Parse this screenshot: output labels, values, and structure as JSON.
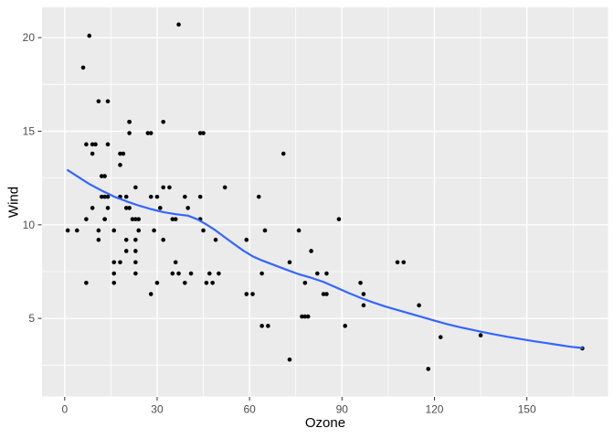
{
  "chart_data": {
    "type": "scatter",
    "title": "",
    "xlabel": "Ozone",
    "ylabel": "Wind",
    "xlim": [
      -7.35,
      176.35
    ],
    "ylim": [
      0.83,
      21.62
    ],
    "x_ticks": [
      0,
      30,
      60,
      90,
      120,
      150
    ],
    "y_ticks": [
      5,
      10,
      15,
      20
    ],
    "x_minor_ticks": [
      15,
      45,
      75,
      105,
      135,
      165
    ],
    "y_minor_ticks": [
      2.5,
      7.5,
      12.5,
      17.5
    ],
    "grid": true,
    "legend": false,
    "colors": {
      "panel_bg": "#EBEBEB",
      "grid": "#FFFFFF",
      "point": "#000000",
      "smooth_line": "#3366FF",
      "tick_mark": "#333333",
      "tick_label": "#4D4D4D",
      "axis_title": "#000000"
    },
    "points": [
      [
        41,
        7.4
      ],
      [
        36,
        8
      ],
      [
        12,
        12.6
      ],
      [
        18,
        11.5
      ],
      [
        28,
        14.9
      ],
      [
        23,
        8.6
      ],
      [
        19,
        13.8
      ],
      [
        8,
        20.1
      ],
      [
        7,
        6.9
      ],
      [
        16,
        9.7
      ],
      [
        11,
        9.2
      ],
      [
        14,
        10.9
      ],
      [
        18,
        13.2
      ],
      [
        14,
        11.5
      ],
      [
        34,
        12
      ],
      [
        6,
        18.4
      ],
      [
        30,
        11.5
      ],
      [
        11,
        9.7
      ],
      [
        1,
        9.7
      ],
      [
        11,
        16.6
      ],
      [
        4,
        9.7
      ],
      [
        32,
        12
      ],
      [
        23,
        12
      ],
      [
        45,
        14.9
      ],
      [
        115,
        5.7
      ],
      [
        37,
        7.4
      ],
      [
        29,
        9.7
      ],
      [
        71,
        13.8
      ],
      [
        39,
        11.5
      ],
      [
        23,
        8
      ],
      [
        21,
        14.9
      ],
      [
        37,
        20.7
      ],
      [
        20,
        9.2
      ],
      [
        12,
        11.5
      ],
      [
        13,
        10.3
      ],
      [
        135,
        4.1
      ],
      [
        49,
        9.2
      ],
      [
        32,
        9.2
      ],
      [
        64,
        4.6
      ],
      [
        40,
        10.9
      ],
      [
        77,
        5.1
      ],
      [
        97,
        6.3
      ],
      [
        97,
        5.7
      ],
      [
        85,
        7.4
      ],
      [
        10,
        14.3
      ],
      [
        27,
        14.9
      ],
      [
        7,
        14.3
      ],
      [
        48,
        6.9
      ],
      [
        35,
        10.3
      ],
      [
        61,
        6.3
      ],
      [
        79,
        5.1
      ],
      [
        63,
        11.5
      ],
      [
        16,
        6.9
      ],
      [
        80,
        8.6
      ],
      [
        108,
        8
      ],
      [
        20,
        8.6
      ],
      [
        52,
        12
      ],
      [
        82,
        7.4
      ],
      [
        50,
        7.4
      ],
      [
        64,
        7.4
      ],
      [
        59,
        9.2
      ],
      [
        39,
        6.9
      ],
      [
        9,
        13.8
      ],
      [
        16,
        7.4
      ],
      [
        78,
        6.9
      ],
      [
        35,
        7.4
      ],
      [
        66,
        4.6
      ],
      [
        122,
        4
      ],
      [
        89,
        10.3
      ],
      [
        110,
        8
      ],
      [
        44,
        11.5
      ],
      [
        28,
        11.5
      ],
      [
        65,
        9.7
      ],
      [
        22,
        10.3
      ],
      [
        59,
        6.3
      ],
      [
        23,
        7.4
      ],
      [
        31,
        10.9
      ],
      [
        44,
        10.3
      ],
      [
        21,
        15.5
      ],
      [
        9,
        14.3
      ],
      [
        45,
        9.7
      ],
      [
        168,
        3.4
      ],
      [
        73,
        8
      ],
      [
        76,
        9.7
      ],
      [
        118,
        2.3
      ],
      [
        84,
        6.3
      ],
      [
        85,
        6.3
      ],
      [
        96,
        6.9
      ],
      [
        78,
        5.1
      ],
      [
        73,
        2.8
      ],
      [
        91,
        4.6
      ],
      [
        47,
        7.4
      ],
      [
        32,
        15.5
      ],
      [
        20,
        10.9
      ],
      [
        23,
        10.3
      ],
      [
        21,
        10.9
      ],
      [
        24,
        9.7
      ],
      [
        44,
        14.9
      ],
      [
        21,
        15.5
      ],
      [
        28,
        6.3
      ],
      [
        9,
        10.9
      ],
      [
        13,
        11.5
      ],
      [
        46,
        6.9
      ],
      [
        18,
        13.8
      ],
      [
        13,
        10.3
      ],
      [
        24,
        10.3
      ],
      [
        16,
        8
      ],
      [
        13,
        12.6
      ],
      [
        23,
        9.2
      ],
      [
        36,
        10.3
      ],
      [
        7,
        10.3
      ],
      [
        14,
        16.6
      ],
      [
        30,
        6.9
      ],
      [
        14,
        14.3
      ],
      [
        18,
        8
      ],
      [
        20,
        11.5
      ]
    ],
    "smooth_line": [
      [
        1,
        12.92
      ],
      [
        4,
        12.6
      ],
      [
        8,
        12.18
      ],
      [
        12,
        11.83
      ],
      [
        16,
        11.51
      ],
      [
        20,
        11.26
      ],
      [
        24,
        11.03
      ],
      [
        28,
        10.84
      ],
      [
        32,
        10.68
      ],
      [
        36,
        10.57
      ],
      [
        40,
        10.49
      ],
      [
        43,
        10.3
      ],
      [
        46,
        10.02
      ],
      [
        49,
        9.7
      ],
      [
        52,
        9.33
      ],
      [
        55,
        8.97
      ],
      [
        58,
        8.62
      ],
      [
        61,
        8.32
      ],
      [
        64,
        8.1
      ],
      [
        68,
        7.85
      ],
      [
        72,
        7.6
      ],
      [
        76,
        7.36
      ],
      [
        80,
        7.17
      ],
      [
        84,
        6.95
      ],
      [
        88,
        6.66
      ],
      [
        92,
        6.37
      ],
      [
        96,
        6.1
      ],
      [
        100,
        5.86
      ],
      [
        104,
        5.64
      ],
      [
        108,
        5.45
      ],
      [
        112,
        5.26
      ],
      [
        116,
        5.07
      ],
      [
        120,
        4.88
      ],
      [
        124,
        4.7
      ],
      [
        128,
        4.54
      ],
      [
        132,
        4.4
      ],
      [
        136,
        4.26
      ],
      [
        140,
        4.13
      ],
      [
        144,
        4.01
      ],
      [
        148,
        3.9
      ],
      [
        152,
        3.79
      ],
      [
        156,
        3.69
      ],
      [
        160,
        3.59
      ],
      [
        164,
        3.49
      ],
      [
        168,
        3.42
      ]
    ]
  }
}
